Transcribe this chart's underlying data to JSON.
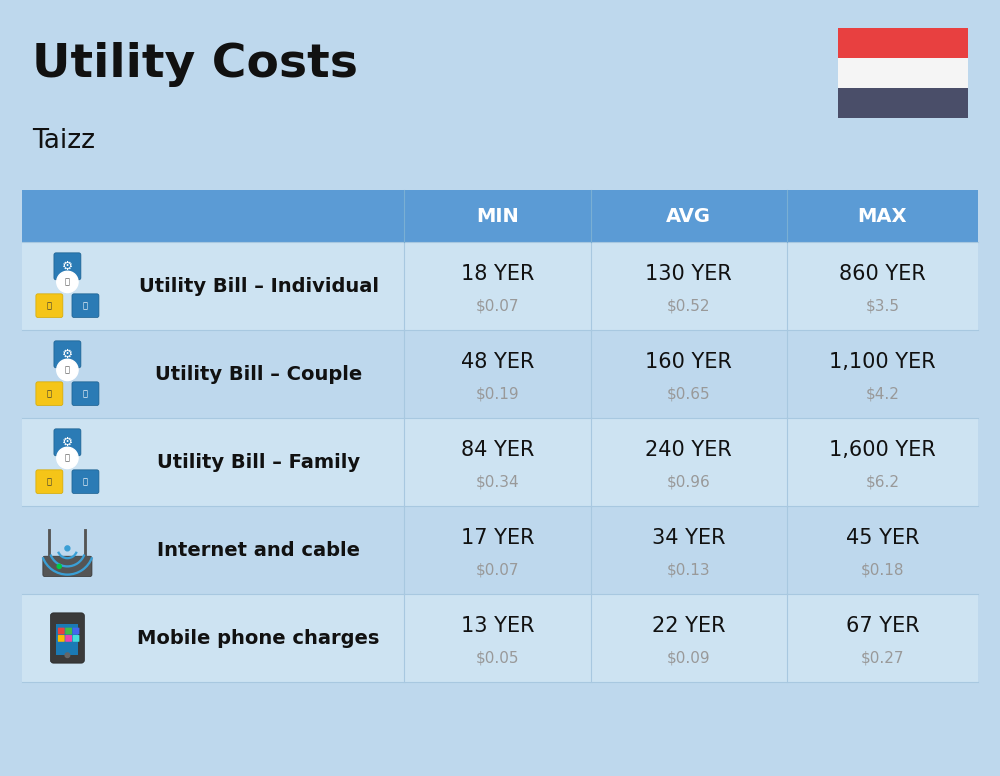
{
  "title": "Utility Costs",
  "subtitle": "Taizz",
  "background_color": "#bed8ed",
  "header_bg_color": "#5b9bd5",
  "header_text_color": "#ffffff",
  "row_bg_light": "#cde3f2",
  "row_bg_dark": "#bed8ed",
  "divider_color": "#a8c8e0",
  "col_headers": [
    "MIN",
    "AVG",
    "MAX"
  ],
  "rows": [
    {
      "label": "Utility Bill – Individual",
      "min_yer": "18 YER",
      "min_usd": "$0.07",
      "avg_yer": "130 YER",
      "avg_usd": "$0.52",
      "max_yer": "860 YER",
      "max_usd": "$3.5"
    },
    {
      "label": "Utility Bill – Couple",
      "min_yer": "48 YER",
      "min_usd": "$0.19",
      "avg_yer": "160 YER",
      "avg_usd": "$0.65",
      "max_yer": "1,100 YER",
      "max_usd": "$4.2"
    },
    {
      "label": "Utility Bill – Family",
      "min_yer": "84 YER",
      "min_usd": "$0.34",
      "avg_yer": "240 YER",
      "avg_usd": "$0.96",
      "max_yer": "1,600 YER",
      "max_usd": "$6.2"
    },
    {
      "label": "Internet and cable",
      "min_yer": "17 YER",
      "min_usd": "$0.07",
      "avg_yer": "34 YER",
      "avg_usd": "$0.13",
      "max_yer": "45 YER",
      "max_usd": "$0.18"
    },
    {
      "label": "Mobile phone charges",
      "min_yer": "13 YER",
      "min_usd": "$0.05",
      "avg_yer": "22 YER",
      "avg_usd": "$0.09",
      "max_yer": "67 YER",
      "max_usd": "$0.27"
    }
  ],
  "flag_red": "#e84040",
  "flag_white": "#f5f5f5",
  "flag_black": "#4a4e69",
  "title_fontsize": 34,
  "subtitle_fontsize": 19,
  "header_fontsize": 14,
  "label_fontsize": 14,
  "value_fontsize": 15,
  "usd_fontsize": 11
}
